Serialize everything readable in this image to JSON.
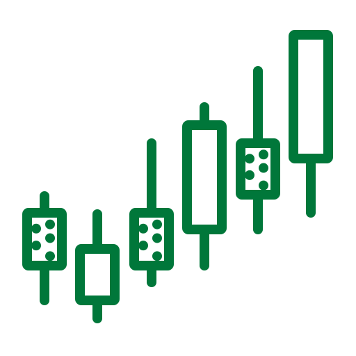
{
  "icon": {
    "name": "candlestick-chart-icon",
    "colors": {
      "stroke": "#00773a",
      "background": "#ffffff"
    },
    "candles": [
      {
        "name": "candle-1",
        "fill": "dotted"
      },
      {
        "name": "candle-2",
        "fill": "hollow"
      },
      {
        "name": "candle-3",
        "fill": "dotted"
      },
      {
        "name": "candle-4",
        "fill": "hollow"
      },
      {
        "name": "candle-5",
        "fill": "dotted"
      },
      {
        "name": "candle-6",
        "fill": "hollow"
      }
    ]
  }
}
